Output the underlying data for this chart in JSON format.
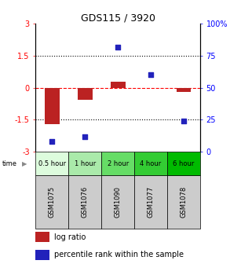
{
  "title": "GDS115 / 3920",
  "samples": [
    "GSM1075",
    "GSM1076",
    "GSM1090",
    "GSM1077",
    "GSM1078"
  ],
  "time_labels": [
    "0.5 hour",
    "1 hour",
    "2 hour",
    "4 hour",
    "6 hour"
  ],
  "time_colors": [
    "#ddfcdd",
    "#aaeaaa",
    "#66dd66",
    "#33cc33",
    "#00bb00"
  ],
  "log_ratios": [
    -1.7,
    -0.55,
    0.3,
    0.0,
    -0.2
  ],
  "percentile_ranks": [
    8,
    12,
    82,
    60,
    24
  ],
  "bar_color": "#bb2222",
  "dot_color": "#2222bb",
  "ylim_left": [
    -3,
    3
  ],
  "ylim_right": [
    0,
    100
  ],
  "yticks_left": [
    -3,
    -1.5,
    0,
    1.5,
    3
  ],
  "yticks_right": [
    0,
    25,
    50,
    75,
    100
  ],
  "ytick_labels_left": [
    "-3",
    "-1.5",
    "0",
    "1.5",
    "3"
  ],
  "ytick_labels_right": [
    "0",
    "25",
    "50",
    "75",
    "100%"
  ],
  "hlines": [
    -1.5,
    0,
    1.5
  ],
  "hline_styles": [
    "dotted",
    "dashed",
    "dotted"
  ],
  "hline_colors": [
    "black",
    "red",
    "black"
  ],
  "legend_log_ratio": "log ratio",
  "legend_percentile": "percentile rank within the sample",
  "time_row_label": "time",
  "sample_bg_color": "#cccccc",
  "bar_width": 0.45,
  "title_fontsize": 9,
  "axis_fontsize": 7,
  "sample_fontsize": 6,
  "time_fontsize": 6,
  "legend_fontsize": 7
}
